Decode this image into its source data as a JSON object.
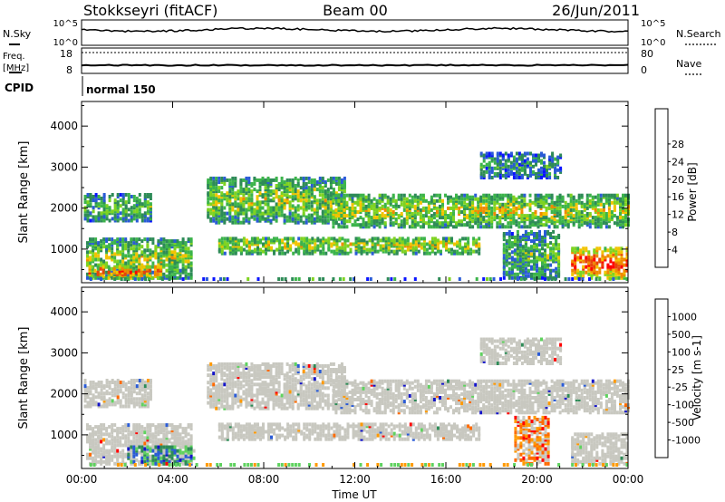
{
  "header": {
    "station": "Stokkseyri (fitACF)",
    "beam": "Beam 00",
    "date": "26/Jun/2011"
  },
  "status_panel": {
    "nsky_label": "N.Sky",
    "nsky_ticks": [
      "10^5",
      "10^0"
    ],
    "nsearch_label": "N.Search",
    "nsearch_ticks": [
      "10^5",
      "10^0"
    ],
    "freq_label": "Freq.",
    "freq_unit": "[MHz]",
    "freq_ticks": [
      "18",
      "8"
    ],
    "nave_label": "Nave",
    "nave_ticks": [
      "80",
      "0"
    ],
    "cpid_label": "CPID",
    "cpid_value": "normal 150"
  },
  "colors": {
    "power": [
      "#0a14ff",
      "#2a5bd6",
      "#2e8b57",
      "#3cb44b",
      "#7ed321",
      "#f2c400",
      "#f08a00",
      "#e8420a",
      "#ff0000"
    ],
    "velocity": [
      "#1414c8",
      "#2a5bd6",
      "#2e8b57",
      "#5fd25f",
      "#c8c8c0",
      "#c8c8c0",
      "#ff9900",
      "#ff6a00",
      "#ff0000"
    ]
  },
  "chart_data": [
    {
      "type": "heatmap",
      "name": "power",
      "xlabel": "",
      "ylabel": "Slant Range [km]",
      "xlim": [
        0,
        24
      ],
      "ylim": [
        180,
        4600
      ],
      "yticks": [
        "1000",
        "2000",
        "3000",
        "4000"
      ],
      "ytick_values": [
        1000,
        2000,
        3000,
        4000
      ],
      "colorbar_label": "Power [dB]",
      "colorbar_ticks": [
        "4",
        "8",
        "12",
        "16",
        "20",
        "24",
        "28"
      ],
      "regions": [
        {
          "t0": 0.1,
          "t1": 3.0,
          "r0": 1650,
          "r1": 2300,
          "level": 0.4
        },
        {
          "t0": 0.2,
          "t1": 4.8,
          "r0": 250,
          "r1": 1200,
          "level": 0.5
        },
        {
          "t0": 0.3,
          "t1": 3.5,
          "r0": 250,
          "r1": 550,
          "level": 0.85
        },
        {
          "t0": 5.5,
          "t1": 11.5,
          "r0": 1600,
          "r1": 2700,
          "level": 0.5
        },
        {
          "t0": 6.0,
          "t1": 17.5,
          "r0": 850,
          "r1": 1250,
          "level": 0.55
        },
        {
          "t0": 11.0,
          "t1": 24.0,
          "r0": 1500,
          "r1": 2300,
          "level": 0.55
        },
        {
          "t0": 17.5,
          "t1": 21.0,
          "r0": 2700,
          "r1": 3300,
          "level": 0.3
        },
        {
          "t0": 18.5,
          "t1": 21.0,
          "r0": 250,
          "r1": 1400,
          "level": 0.4
        },
        {
          "t0": 21.5,
          "t1": 24.0,
          "r0": 250,
          "r1": 1000,
          "level": 0.9
        }
      ]
    },
    {
      "type": "heatmap",
      "name": "velocity",
      "xlabel": "Time UT",
      "ylabel": "Slant Range [km]",
      "xlim": [
        0,
        24
      ],
      "ylim": [
        180,
        4600
      ],
      "xticks": [
        "00:00",
        "04:00",
        "08:00",
        "12:00",
        "16:00",
        "20:00",
        "00:00"
      ],
      "xtick_values": [
        0,
        4,
        8,
        12,
        16,
        20,
        24
      ],
      "yticks": [
        "1000",
        "2000",
        "3000",
        "4000"
      ],
      "ytick_values": [
        1000,
        2000,
        3000,
        4000
      ],
      "colorbar_label": "Velocity [m s-1]",
      "colorbar_ticks": [
        "1000",
        "500",
        "100",
        "25",
        "-25",
        "-100",
        "-500",
        "-1000"
      ],
      "regions": [
        {
          "t0": 0.1,
          "t1": 3.0,
          "r0": 1650,
          "r1": 2300,
          "level": 0.5
        },
        {
          "t0": 0.2,
          "t1": 4.8,
          "r0": 250,
          "r1": 1200,
          "level": 0.5
        },
        {
          "t0": 2.0,
          "t1": 5.0,
          "r0": 250,
          "r1": 700,
          "level": 0.3
        },
        {
          "t0": 5.5,
          "t1": 11.5,
          "r0": 1600,
          "r1": 2700,
          "level": 0.5
        },
        {
          "t0": 6.0,
          "t1": 17.5,
          "r0": 850,
          "r1": 1250,
          "level": 0.5
        },
        {
          "t0": 11.0,
          "t1": 24.0,
          "r0": 1500,
          "r1": 2300,
          "level": 0.5
        },
        {
          "t0": 17.5,
          "t1": 21.0,
          "r0": 2700,
          "r1": 3300,
          "level": 0.5
        },
        {
          "t0": 19.0,
          "t1": 20.5,
          "r0": 250,
          "r1": 1400,
          "level": 0.72
        },
        {
          "t0": 21.5,
          "t1": 24.0,
          "r0": 250,
          "r1": 1000,
          "level": 0.5
        }
      ]
    }
  ]
}
